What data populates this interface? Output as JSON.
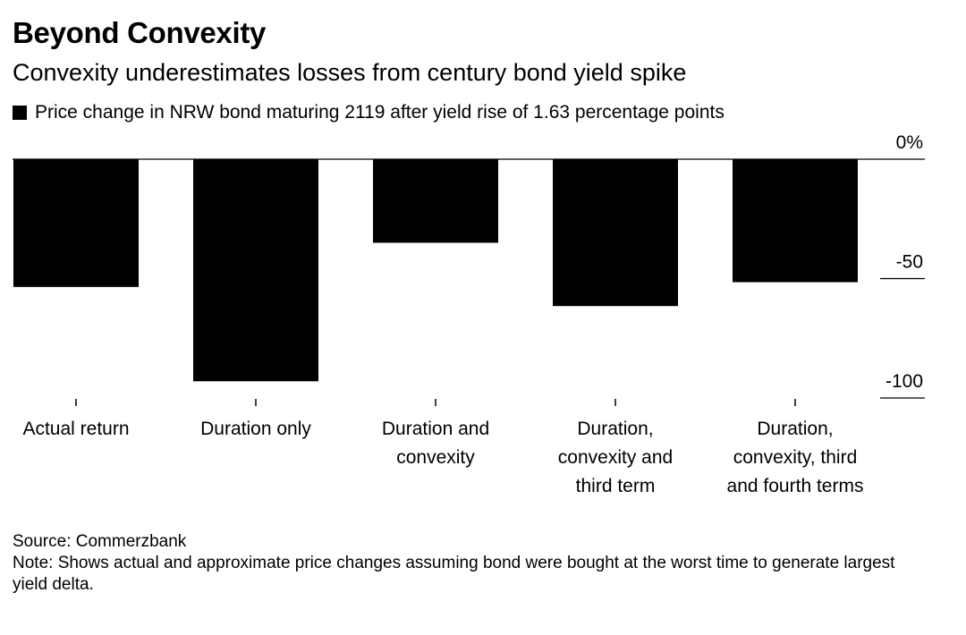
{
  "title": "Beyond Convexity",
  "subtitle": "Convexity underestimates losses from century bond yield spike",
  "chart_data": {
    "type": "bar",
    "categories": [
      "Actual return",
      "Duration only",
      "Duration and convexity",
      "Duration, convexity and third term",
      "Duration, convexity, third and fourth terms"
    ],
    "category_label_lines": [
      [
        "Actual return"
      ],
      [
        "Duration only"
      ],
      [
        "Duration and",
        "convexity"
      ],
      [
        "Duration,",
        "convexity and",
        "third term"
      ],
      [
        "Duration,",
        "convexity, third",
        "and fourth terms"
      ]
    ],
    "series": [
      {
        "name": "Price change in NRW bond maturing 2119 after yield rise of 1.63 percentage points",
        "values": [
          -53.5,
          -93,
          -35,
          -61.5,
          -51.5
        ],
        "color": "#000000"
      }
    ],
    "yticks": [
      0,
      -50,
      -100
    ],
    "ytick_labels": [
      "0%",
      "-50",
      "-100"
    ],
    "ylim": [
      -100,
      0
    ],
    "axis_side": "right",
    "grid": false
  },
  "source": "Source: Commerzbank",
  "note": "Note: Shows actual and approximate price changes assuming bond were bought at the worst time to generate largest yield delta."
}
